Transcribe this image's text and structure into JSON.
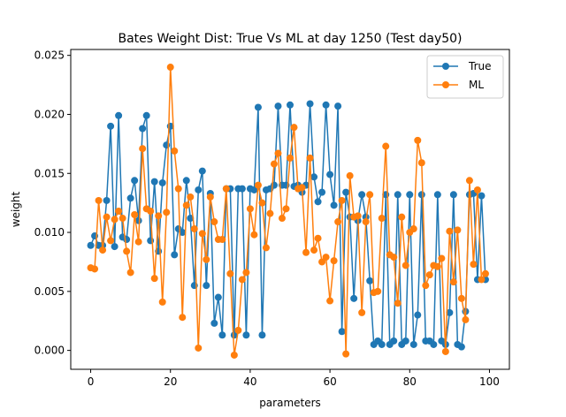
{
  "chart_data": {
    "type": "line",
    "title": "Bates Weight Dist: True Vs ML at day 1250 (Test day50)",
    "xlabel": "parameters",
    "ylabel": "weight",
    "xlim": [
      -5,
      105
    ],
    "ylim": [
      -0.0016,
      0.0255
    ],
    "xticks": [
      0,
      20,
      40,
      60,
      80,
      100
    ],
    "yticks": [
      0.0,
      0.005,
      0.01,
      0.015,
      0.02,
      0.025
    ],
    "ytick_labels": [
      "0.000",
      "0.005",
      "0.010",
      "0.015",
      "0.020",
      "0.025"
    ],
    "legend_position": "top-right",
    "series": [
      {
        "name": "True",
        "color": "#1f77b4",
        "values": [
          0.0089,
          0.0097,
          0.0089,
          0.0089,
          0.0127,
          0.019,
          0.0088,
          0.0199,
          0.0096,
          0.0094,
          0.0129,
          0.0144,
          0.011,
          0.0188,
          0.0199,
          0.0093,
          0.0143,
          0.0084,
          0.0142,
          0.0174,
          0.019,
          0.0081,
          0.0103,
          0.01,
          0.0144,
          0.0112,
          0.0055,
          0.0136,
          0.0152,
          0.0055,
          0.0133,
          0.0023,
          0.0045,
          0.0013,
          0.0137,
          0.0137,
          0.0013,
          0.0137,
          0.0137,
          0.0013,
          0.0137,
          0.0136,
          0.0206,
          0.0013,
          0.0136,
          0.0137,
          0.014,
          0.0207,
          0.014,
          0.014,
          0.0208,
          0.0139,
          0.014,
          0.0134,
          0.014,
          0.0209,
          0.0147,
          0.0126,
          0.0134,
          0.0208,
          0.0149,
          0.0123,
          0.0207,
          0.0016,
          0.0134,
          0.0113,
          0.0044,
          0.011,
          0.0132,
          0.0113,
          0.0059,
          0.0005,
          0.0008,
          0.0005,
          0.0132,
          0.0005,
          0.0008,
          0.0132,
          0.0005,
          0.0008,
          0.0132,
          0.0005,
          0.003,
          0.0132,
          0.0008,
          0.0008,
          0.0005,
          0.0132,
          0.0008,
          0.0005,
          0.0032,
          0.0132,
          0.0005,
          0.0003,
          0.0033,
          0.0132,
          0.0133,
          0.006,
          0.0131,
          0.006
        ]
      },
      {
        "name": "ML",
        "color": "#ff7f0e",
        "values": [
          0.007,
          0.0069,
          0.0127,
          0.0085,
          0.0113,
          0.0093,
          0.0111,
          0.0118,
          0.0112,
          0.0084,
          0.0066,
          0.0115,
          0.0092,
          0.0171,
          0.012,
          0.0118,
          0.0061,
          0.0114,
          0.0041,
          0.0117,
          0.024,
          0.0169,
          0.0137,
          0.0028,
          0.0123,
          0.013,
          0.0103,
          0.0002,
          0.0099,
          0.0077,
          0.013,
          0.0109,
          0.0094,
          0.0094,
          0.0137,
          0.0065,
          -0.0004,
          0.0017,
          0.006,
          0.0066,
          0.012,
          0.0098,
          0.014,
          0.0125,
          0.0087,
          0.0116,
          0.0158,
          0.0167,
          0.0112,
          0.012,
          0.0163,
          0.0189,
          0.0137,
          0.0138,
          0.0083,
          0.0163,
          0.0085,
          0.0095,
          0.0075,
          0.0079,
          0.0042,
          0.0076,
          0.0109,
          0.0127,
          -0.0003,
          0.0148,
          0.0113,
          0.0114,
          0.0032,
          0.0109,
          0.0132,
          0.0049,
          0.005,
          0.0112,
          0.0173,
          0.0081,
          0.0079,
          0.004,
          0.0113,
          0.0072,
          0.01,
          0.0103,
          0.0178,
          0.0159,
          0.0055,
          0.0064,
          0.0072,
          0.0071,
          0.0078,
          -0.0001,
          0.0101,
          0.0058,
          0.0102,
          0.0044,
          0.0026,
          0.0144,
          0.0073,
          0.0136,
          0.006,
          0.0065
        ]
      }
    ]
  }
}
